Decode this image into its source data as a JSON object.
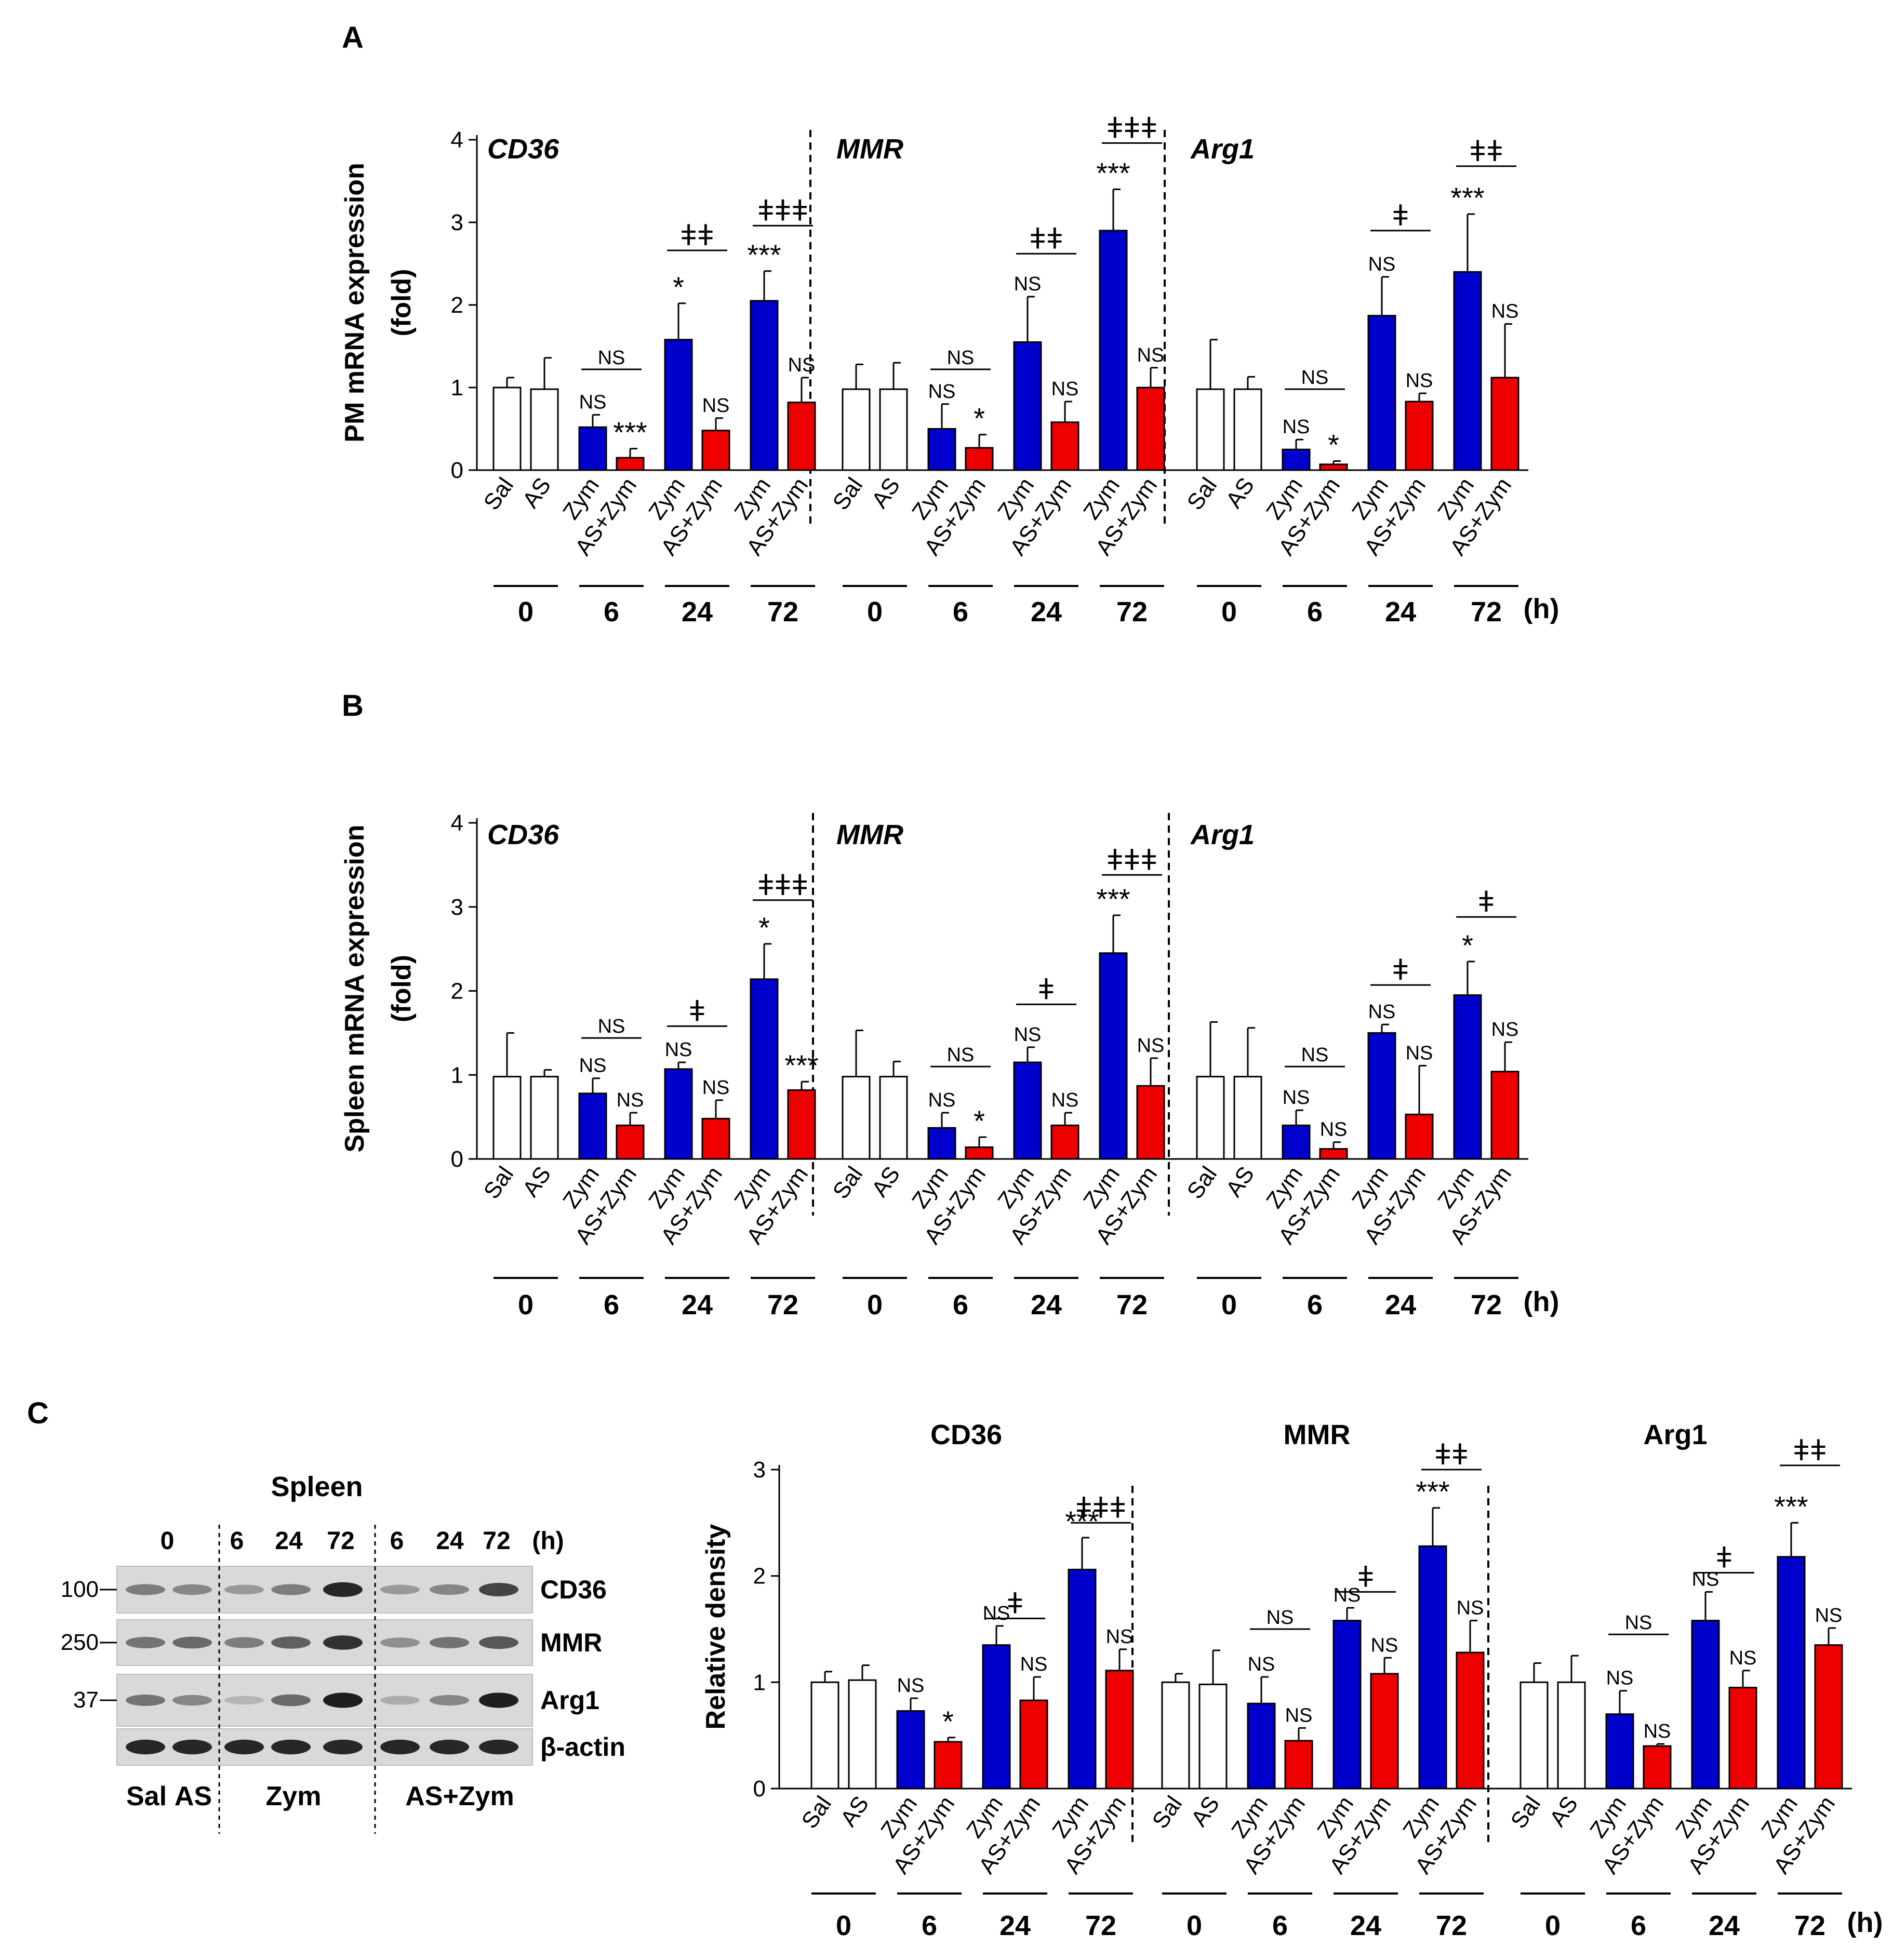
{
  "colors": {
    "zym": "#0000CC",
    "as_zym": "#EE0000",
    "control": "#FFFFFF",
    "stroke": "#000000"
  },
  "chart_data": [
    {
      "id": "A",
      "panel_letter": "A",
      "type": "bar",
      "ylabel_line1": "PM  mRNA expression",
      "ylabel_line2": "(fold)",
      "ylim": [
        0,
        4
      ],
      "yticks": [
        "0",
        "1",
        "2",
        "3",
        "4"
      ],
      "categories": [
        "Sal",
        "AS",
        "Zym",
        "AS+Zym",
        "Zym",
        "AS+Zym",
        "Zym",
        "AS+Zym"
      ],
      "time_labels": [
        "0",
        "6",
        "24",
        "72"
      ],
      "time_unit": "(h)",
      "groups": [
        {
          "gene": "CD36",
          "values": [
            1.0,
            0.98,
            0.52,
            0.15,
            1.58,
            0.48,
            2.05,
            0.82
          ],
          "errors": [
            0.12,
            0.38,
            0.15,
            0.11,
            0.44,
            0.15,
            0.36,
            0.3
          ],
          "marks": [
            "",
            "",
            "NS",
            "***",
            "*",
            "NS",
            "***",
            "NS"
          ],
          "brackets": [
            {
              "pair": 1,
              "label": "NS",
              "y": 1.22
            },
            {
              "pair": 2,
              "label": "ǂǂ",
              "y": 2.66
            },
            {
              "pair": 3,
              "label": "ǂǂǂ",
              "y": 2.96
            }
          ]
        },
        {
          "gene": "MMR",
          "values": [
            0.98,
            0.98,
            0.5,
            0.27,
            1.55,
            0.58,
            2.9,
            1.0
          ],
          "errors": [
            0.3,
            0.32,
            0.3,
            0.16,
            0.55,
            0.25,
            0.5,
            0.24
          ],
          "marks": [
            "",
            "",
            "NS",
            "*",
            "NS",
            "NS",
            "***",
            "NS"
          ],
          "brackets": [
            {
              "pair": 1,
              "label": "NS",
              "y": 1.22
            },
            {
              "pair": 2,
              "label": "ǂǂ",
              "y": 2.62
            },
            {
              "pair": 3,
              "label": "ǂǂǂ",
              "y": 3.96
            }
          ]
        },
        {
          "gene": "Arg1",
          "values": [
            0.98,
            0.98,
            0.25,
            0.07,
            1.87,
            0.83,
            2.4,
            1.12
          ],
          "errors": [
            0.6,
            0.15,
            0.12,
            0.04,
            0.47,
            0.1,
            0.7,
            0.65
          ],
          "marks": [
            "",
            "",
            "NS",
            "*",
            "NS",
            "NS",
            "***",
            "NS"
          ],
          "brackets": [
            {
              "pair": 1,
              "label": "NS",
              "y": 0.98
            },
            {
              "pair": 2,
              "label": "ǂ",
              "y": 2.9
            },
            {
              "pair": 3,
              "label": "ǂǂ",
              "y": 3.68
            }
          ]
        }
      ]
    },
    {
      "id": "B",
      "panel_letter": "B",
      "type": "bar",
      "ylabel_line1": "Spleen  mRNA expression",
      "ylabel_line2": "(fold)",
      "ylim": [
        0,
        4
      ],
      "yticks": [
        "0",
        "1",
        "2",
        "3",
        "4"
      ],
      "categories": [
        "Sal",
        "AS",
        "Zym",
        "AS+Zym",
        "Zym",
        "AS+Zym",
        "Zym",
        "AS+Zym"
      ],
      "time_labels": [
        "0",
        "6",
        "24",
        "72"
      ],
      "time_unit": "(h)",
      "groups": [
        {
          "gene": "CD36",
          "values": [
            0.98,
            0.98,
            0.78,
            0.4,
            1.07,
            0.48,
            2.14,
            0.82
          ],
          "errors": [
            0.52,
            0.08,
            0.18,
            0.15,
            0.08,
            0.22,
            0.42,
            0.1
          ],
          "marks": [
            "",
            "",
            "NS",
            "NS",
            "NS",
            "NS",
            "*",
            "***"
          ],
          "brackets": [
            {
              "pair": 1,
              "label": "NS",
              "y": 1.44
            },
            {
              "pair": 2,
              "label": "ǂ",
              "y": 1.58
            },
            {
              "pair": 3,
              "label": "ǂǂǂ",
              "y": 3.08
            }
          ]
        },
        {
          "gene": "MMR",
          "values": [
            0.98,
            0.98,
            0.37,
            0.14,
            1.15,
            0.4,
            2.45,
            0.87
          ],
          "errors": [
            0.55,
            0.18,
            0.18,
            0.12,
            0.18,
            0.15,
            0.45,
            0.33
          ],
          "marks": [
            "",
            "",
            "NS",
            "*",
            "NS",
            "NS",
            "***",
            "NS"
          ],
          "brackets": [
            {
              "pair": 1,
              "label": "NS",
              "y": 1.1
            },
            {
              "pair": 2,
              "label": "ǂ",
              "y": 1.84
            },
            {
              "pair": 3,
              "label": "ǂǂǂ",
              "y": 3.38
            }
          ]
        },
        {
          "gene": "Arg1",
          "values": [
            0.98,
            0.98,
            0.4,
            0.12,
            1.5,
            0.53,
            1.95,
            1.04
          ],
          "errors": [
            0.65,
            0.58,
            0.18,
            0.08,
            0.1,
            0.58,
            0.4,
            0.35
          ],
          "marks": [
            "",
            "",
            "NS",
            "NS",
            "NS",
            "NS",
            "*",
            "NS"
          ],
          "brackets": [
            {
              "pair": 1,
              "label": "NS",
              "y": 1.1
            },
            {
              "pair": 2,
              "label": "ǂ",
              "y": 2.07
            },
            {
              "pair": 3,
              "label": "ǂ",
              "y": 2.88
            }
          ]
        }
      ]
    },
    {
      "id": "C",
      "panel_letter": "C",
      "type": "bar",
      "ylabel_line1": "Relative density",
      "ylabel_line2": "",
      "ylim": [
        0,
        3
      ],
      "yticks": [
        "0",
        "1",
        "2",
        "3"
      ],
      "categories": [
        "Sal",
        "AS",
        "Zym",
        "AS+Zym",
        "Zym",
        "AS+Zym",
        "Zym",
        "AS+Zym"
      ],
      "time_labels": [
        "0",
        "6",
        "24",
        "72"
      ],
      "time_unit": "(h)",
      "groups": [
        {
          "gene": "CD36",
          "values": [
            1.0,
            1.02,
            0.73,
            0.44,
            1.35,
            0.83,
            2.06,
            1.11
          ],
          "errors": [
            0.1,
            0.14,
            0.12,
            0.04,
            0.18,
            0.22,
            0.3,
            0.2
          ],
          "marks": [
            "",
            "",
            "NS",
            "*",
            "NS",
            "NS",
            "***",
            "NS"
          ],
          "brackets": [
            {
              "pair": 2,
              "label": "ǂ",
              "y": 1.6
            },
            {
              "pair": 3,
              "label": "ǂǂǂ",
              "y": 2.5
            }
          ]
        },
        {
          "gene": "MMR",
          "values": [
            1.0,
            0.98,
            0.8,
            0.45,
            1.58,
            1.08,
            2.28,
            1.28
          ],
          "errors": [
            0.08,
            0.32,
            0.25,
            0.12,
            0.12,
            0.15,
            0.36,
            0.3
          ],
          "marks": [
            "",
            "",
            "NS",
            "NS",
            "NS",
            "NS",
            "***",
            "NS"
          ],
          "brackets": [
            {
              "pair": 1,
              "label": "NS",
              "y": 1.5
            },
            {
              "pair": 2,
              "label": "ǂ",
              "y": 1.85
            },
            {
              "pair": 3,
              "label": "ǂǂ",
              "y": 3.0
            }
          ]
        },
        {
          "gene": "Arg1",
          "values": [
            1.0,
            1.0,
            0.7,
            0.4,
            1.58,
            0.95,
            2.18,
            1.35
          ],
          "errors": [
            0.18,
            0.25,
            0.22,
            0.02,
            0.27,
            0.16,
            0.32,
            0.16
          ],
          "marks": [
            "",
            "",
            "NS",
            "NS",
            "NS",
            "NS",
            "***",
            "NS"
          ],
          "brackets": [
            {
              "pair": 1,
              "label": "NS",
              "y": 1.45
            },
            {
              "pair": 2,
              "label": "ǂ",
              "y": 2.03
            },
            {
              "pair": 3,
              "label": "ǂǂ",
              "y": 3.04
            }
          ]
        }
      ]
    }
  ],
  "blot": {
    "title": "Spleen",
    "time_labels": [
      "0",
      "6",
      "24",
      "72",
      "6",
      "24",
      "72"
    ],
    "time_unit": "(h)",
    "rows": [
      {
        "protein": "CD36",
        "mw": "100"
      },
      {
        "protein": "MMR",
        "mw": "250"
      },
      {
        "protein": "Arg1",
        "mw": "37"
      },
      {
        "protein": "β-actin",
        "mw": ""
      }
    ],
    "groups": [
      "Sal",
      "AS",
      "Zym",
      "AS+Zym"
    ],
    "band_intensity": [
      [
        0.45,
        0.4,
        0.3,
        0.45,
        0.9,
        0.3,
        0.4,
        0.75
      ],
      [
        0.5,
        0.55,
        0.45,
        0.6,
        0.85,
        0.35,
        0.5,
        0.65
      ],
      [
        0.5,
        0.4,
        0.15,
        0.55,
        0.95,
        0.2,
        0.4,
        0.95
      ],
      [
        0.9,
        0.9,
        0.9,
        0.9,
        0.9,
        0.9,
        0.9,
        0.9
      ]
    ]
  }
}
